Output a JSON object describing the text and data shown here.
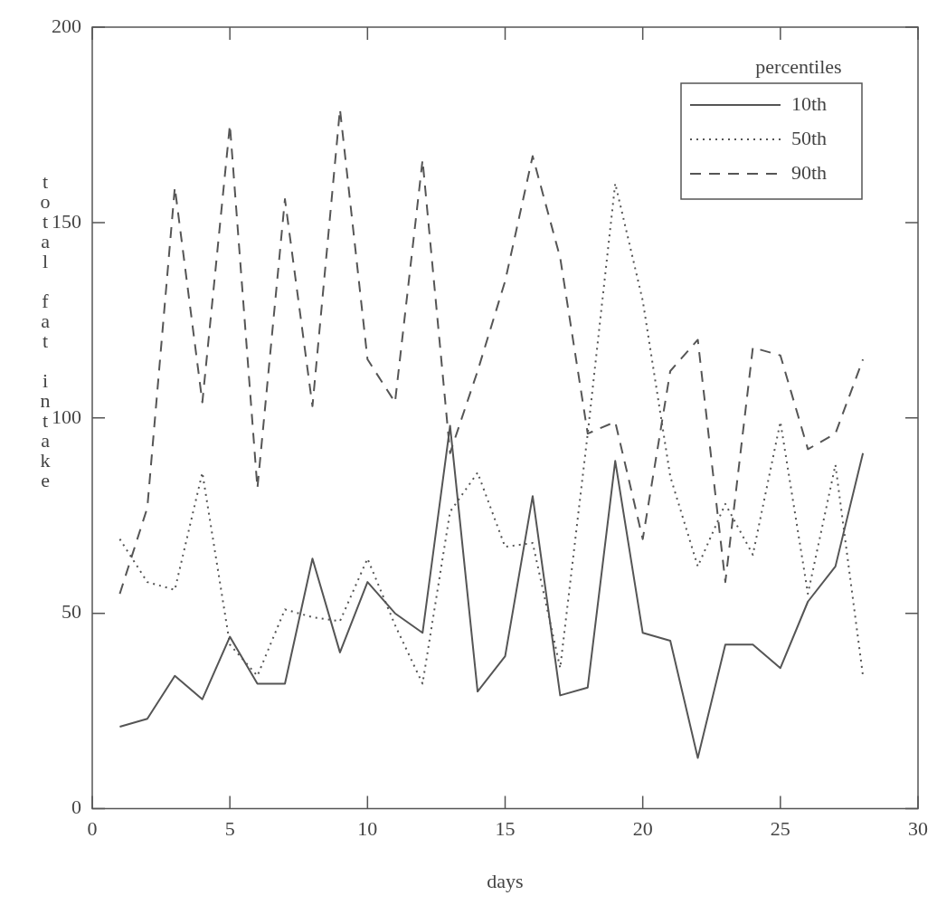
{
  "chart_data": {
    "type": "line",
    "xlabel": "days",
    "ylabel": "total fat intake",
    "legend_title": "percentiles",
    "legend": "top right",
    "grid": false,
    "marker": "none",
    "x": [
      1,
      2,
      3,
      4,
      5,
      6,
      7,
      8,
      9,
      10,
      11,
      12,
      13,
      14,
      15,
      16,
      17,
      18,
      19,
      20,
      21,
      22,
      23,
      24,
      25,
      26,
      27,
      28
    ],
    "xlim": [
      0,
      30
    ],
    "xticks": [
      0,
      5,
      10,
      15,
      20,
      25,
      30
    ],
    "ylim": [
      0,
      200
    ],
    "yticks": [
      0,
      50,
      100,
      150,
      200
    ],
    "series": [
      {
        "name": "10th",
        "color": "#555555",
        "line_style": "solid",
        "values": [
          21,
          23,
          34,
          28,
          44,
          32,
          32,
          64,
          40,
          58,
          50,
          45,
          98,
          30,
          39,
          80,
          29,
          31,
          89,
          45,
          43,
          13,
          42,
          42,
          36,
          53,
          62,
          91
        ]
      },
      {
        "name": "50th",
        "color": "#555555",
        "line_style": "dotted",
        "values": [
          69,
          58,
          56,
          86,
          42,
          34,
          51,
          49,
          48,
          64,
          47,
          32,
          76,
          86,
          67,
          68,
          36,
          96,
          160,
          130,
          85,
          62,
          78,
          65,
          99,
          55,
          88,
          34
        ]
      },
      {
        "name": "90th",
        "color": "#555555",
        "line_style": "dashed",
        "values": [
          55,
          77,
          159,
          104,
          175,
          82,
          156,
          103,
          179,
          115,
          104,
          166,
          91,
          112,
          135,
          167,
          141,
          96,
          99,
          69,
          112,
          120,
          58,
          118,
          116,
          92,
          96,
          115
        ]
      }
    ]
  }
}
